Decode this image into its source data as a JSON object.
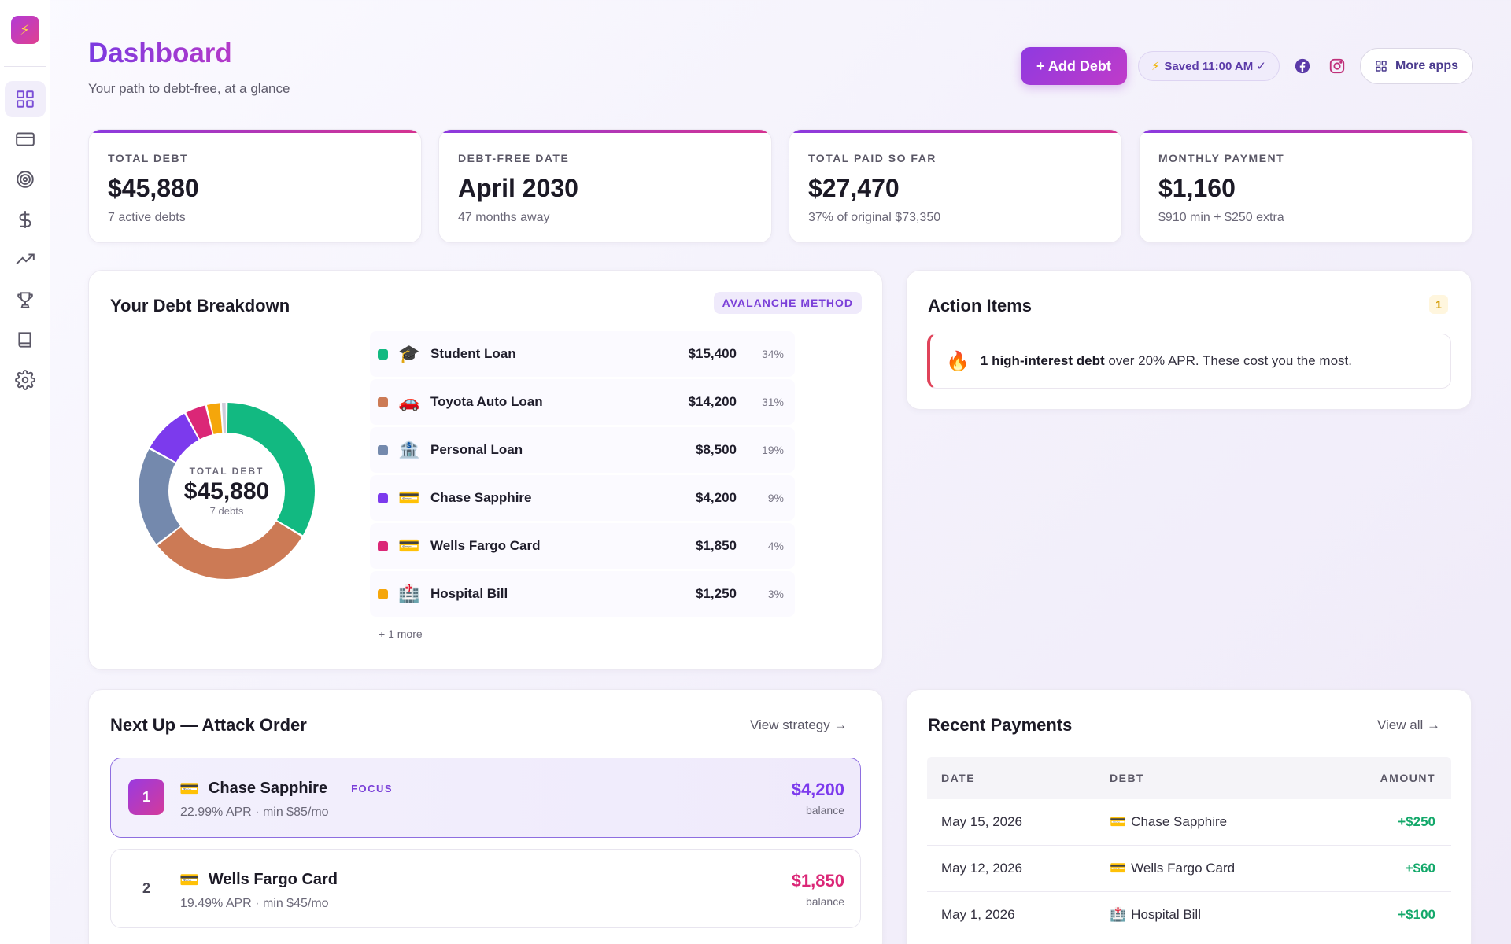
{
  "app": {
    "logo_glyph": "⚡",
    "accent": "#8a35d8",
    "accent_pink": "#d6338f"
  },
  "sidebar": {
    "items": [
      {
        "name": "dashboard",
        "icon": "grid-icon",
        "active": true
      },
      {
        "name": "debts",
        "icon": "credit-card-icon"
      },
      {
        "name": "goals",
        "icon": "target-icon"
      },
      {
        "name": "payments",
        "icon": "dollar-icon"
      },
      {
        "name": "progress",
        "icon": "trending-up-icon"
      },
      {
        "name": "achievements",
        "icon": "trophy-icon"
      },
      {
        "name": "learn",
        "icon": "book-icon"
      },
      {
        "name": "settings",
        "icon": "gear-icon"
      }
    ]
  },
  "header": {
    "title": "Dashboard",
    "subtitle": "Your path to debt-free, at a glance",
    "add_debt_label": "+ Add Debt",
    "saved_label": "Saved 11:00 AM ✓",
    "saved_icon": "⚡",
    "more_apps_label": "More apps"
  },
  "stats": [
    {
      "label": "TOTAL DEBT",
      "value": "$45,880",
      "sub": "7 active debts"
    },
    {
      "label": "DEBT-FREE DATE",
      "value": "April 2030",
      "sub": "47 months away"
    },
    {
      "label": "TOTAL PAID SO FAR",
      "value": "$27,470",
      "sub": "37% of original $73,350"
    },
    {
      "label": "MONTHLY PAYMENT",
      "value": "$1,160",
      "sub": "$910 min + $250 extra"
    }
  ],
  "breakdown": {
    "title": "Your Debt Breakdown",
    "method_badge": "AVALANCHE METHOD",
    "center_label": "TOTAL DEBT",
    "center_value": "$45,880",
    "center_sub": "7 debts",
    "more_label": "+ 1 more",
    "debts": [
      {
        "name": "Student Loan",
        "emoji": "🎓",
        "amount": "$15,400",
        "pct": "34%",
        "value": 15400,
        "color": "#12b981"
      },
      {
        "name": "Toyota Auto Loan",
        "emoji": "🚗",
        "amount": "$14,200",
        "pct": "31%",
        "value": 14200,
        "color": "#cc7a55"
      },
      {
        "name": "Personal Loan",
        "emoji": "🏦",
        "amount": "$8,500",
        "pct": "19%",
        "value": 8500,
        "color": "#7489ad"
      },
      {
        "name": "Chase Sapphire",
        "emoji": "💳",
        "amount": "$4,200",
        "pct": "9%",
        "value": 4200,
        "color": "#7c3aed"
      },
      {
        "name": "Wells Fargo Card",
        "emoji": "💳",
        "amount": "$1,850",
        "pct": "4%",
        "value": 1850,
        "color": "#db2777"
      },
      {
        "name": "Hospital Bill",
        "emoji": "🏥",
        "amount": "$1,250",
        "pct": "3%",
        "value": 1250,
        "color": "#f5a60b"
      }
    ],
    "other_value": 480,
    "other_color": "#cfcbd9"
  },
  "actions": {
    "title": "Action Items",
    "count": "1",
    "alert_icon": "🔥",
    "alert_bold": "1 high-interest debt",
    "alert_rest": " over 20% APR. These cost you the most."
  },
  "attack": {
    "title": "Next Up — Attack Order",
    "view_label": "View strategy →",
    "items": [
      {
        "rank": "1",
        "emoji": "💳",
        "name": "Chase Sapphire",
        "tag": "FOCUS",
        "sub": "22.99% APR · min $85/mo",
        "amount": "$4,200",
        "balance_label": "balance",
        "amount_color": "#7c3aed"
      },
      {
        "rank": "2",
        "emoji": "💳",
        "name": "Wells Fargo Card",
        "tag": "",
        "sub": "19.49% APR · min $45/mo",
        "amount": "$1,850",
        "balance_label": "balance",
        "amount_color": "#db2777"
      }
    ]
  },
  "payments": {
    "title": "Recent Payments",
    "view_label": "View all →",
    "columns": [
      "DATE",
      "DEBT",
      "AMOUNT"
    ],
    "rows": [
      {
        "date": "May 15, 2026",
        "emoji": "💳",
        "debt": "Chase Sapphire",
        "amount": "+$250"
      },
      {
        "date": "May 12, 2026",
        "emoji": "💳",
        "debt": "Wells Fargo Card",
        "amount": "+$60"
      },
      {
        "date": "May 1, 2026",
        "emoji": "🏥",
        "debt": "Hospital Bill",
        "amount": "+$100"
      }
    ]
  }
}
